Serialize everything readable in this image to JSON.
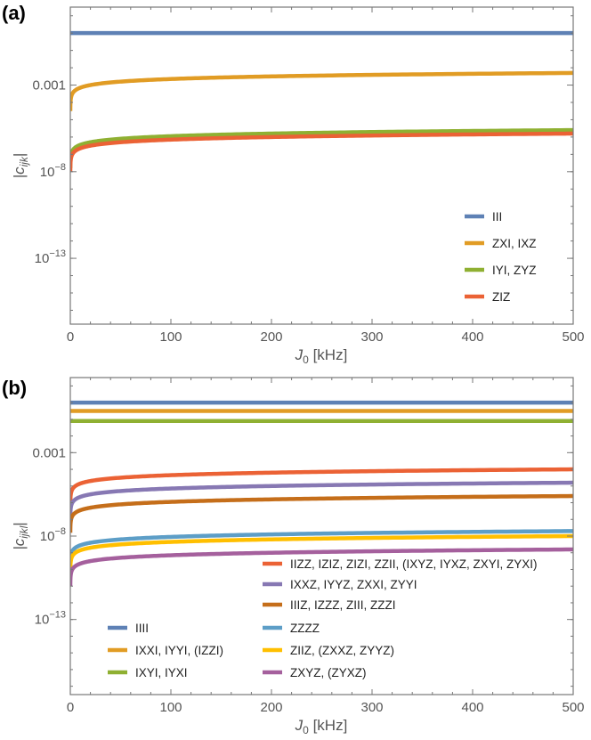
{
  "chart_data": [
    {
      "panel": "(a)",
      "type": "line",
      "xlabel_symbol": "J",
      "xlabel_sub": "0",
      "xlabel_unit": " [kHz]",
      "ylabel_main": "|c",
      "ylabel_sub": "ijk",
      "ylabel_end": "|",
      "xlim": [
        0,
        500
      ],
      "y_scale": "log",
      "ylim_log10": [
        -16.8,
        1.5
      ],
      "xticks": [
        0,
        100,
        200,
        300,
        400,
        500
      ],
      "yticks": [
        {
          "base": "0.001",
          "exp": "",
          "log10": -3
        },
        {
          "base": "10",
          "exp": "−8",
          "log10": -8
        },
        {
          "base": "10",
          "exp": "−13",
          "log10": -13
        }
      ],
      "legend_position": "bottom-right",
      "series": [
        {
          "name": "III",
          "color": "#5e81b5",
          "form": "constant",
          "log10": 0
        },
        {
          "name": "ZXI, IXZ",
          "color": "#e19c24",
          "form": "sqrt",
          "log10_at_500": -2.3
        },
        {
          "name": "IYI, ZYZ",
          "color": "#8fb032",
          "form": "sqrt",
          "log10_at_500": -5.6
        },
        {
          "name": "ZIZ",
          "color": "#eb6235",
          "form": "sqrt",
          "log10_at_500": -5.8
        }
      ]
    },
    {
      "panel": "(b)",
      "type": "line",
      "xlabel_symbol": "J",
      "xlabel_sub": "0",
      "xlabel_unit": " [kHz]",
      "ylabel_main": "|c",
      "ylabel_sub": "ijkl",
      "ylabel_end": "|",
      "xlim": [
        0,
        500
      ],
      "y_scale": "log",
      "ylim_log10": [
        -17.5,
        1.5
      ],
      "xticks": [
        0,
        100,
        200,
        300,
        400,
        500
      ],
      "yticks": [
        {
          "base": "0.001",
          "exp": "",
          "log10": -3
        },
        {
          "base": "10",
          "exp": "−8",
          "log10": -8
        },
        {
          "base": "10",
          "exp": "−13",
          "log10": -13
        }
      ],
      "legend_position": "bottom",
      "series": [
        {
          "name": "IIII",
          "color": "#5e81b5",
          "form": "constant",
          "log10": 0
        },
        {
          "name": "IXXI, IYYI, (IZZI)",
          "color": "#e19c24",
          "form": "constant",
          "log10": -0.5
        },
        {
          "name": "IXYI, IYXI",
          "color": "#8fb032",
          "form": "constant",
          "log10": -1.1
        },
        {
          "name": "IIZZ, IZIZ, ZIZI, ZZII, (IXYZ, IYXZ, ZXYI, ZYXI)",
          "color": "#eb6235",
          "form": "sqrt",
          "log10_at_500": -4.0
        },
        {
          "name": "IXXZ, IYYZ, ZXXI, ZYYI",
          "color": "#8778b3",
          "form": "sqrt",
          "log10_at_500": -4.8
        },
        {
          "name": "IIIZ, IZZZ, ZIII, ZZZI",
          "color": "#c56e1a",
          "form": "sqrt",
          "log10_at_500": -5.6
        },
        {
          "name": "ZZZZ",
          "color": "#5d9ec7",
          "form": "sqrt",
          "log10_at_500": -7.7
        },
        {
          "name": "ZIIZ, (ZXXZ, ZYYZ)",
          "color": "#ffbf00",
          "form": "sqrt",
          "log10_at_500": -8.0
        },
        {
          "name": "ZXYZ, (ZYXZ)",
          "color": "#a5609d",
          "form": "sqrt",
          "log10_at_500": -8.8
        }
      ]
    }
  ]
}
